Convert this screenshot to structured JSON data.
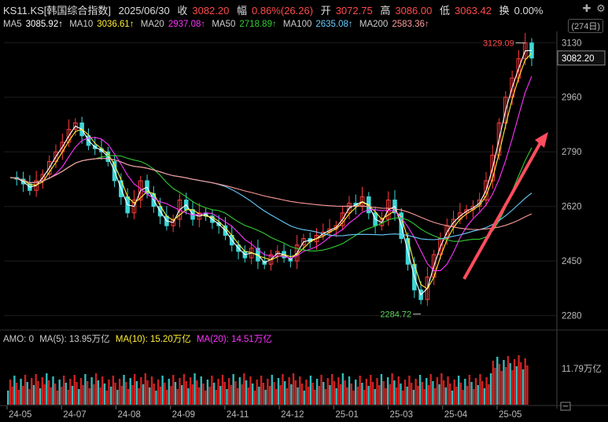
{
  "header": {
    "symbol": "KS11.KS[韩国综合指数]",
    "date": "2025/06/30",
    "close_label": "收",
    "close": "3082.20",
    "change_label": "幅",
    "change": "0.86%(26.26)",
    "open_label": "开",
    "open": "3072.75",
    "high_label": "高",
    "high": "3086.00",
    "low_label": "低",
    "low": "3063.42",
    "turnover_label": "换",
    "turnover": "0.00%"
  },
  "ma_line": [
    {
      "label": "MA5",
      "value": "3085.92↑",
      "color": "#ffffff"
    },
    {
      "label": "MA10",
      "value": "3036.61↑",
      "color": "#ffee33"
    },
    {
      "label": "MA20",
      "value": "2937.08↑",
      "color": "#ff33ff"
    },
    {
      "label": "MA50",
      "value": "2718.89↑",
      "color": "#33cc33"
    },
    {
      "label": "MA100",
      "value": "2635.08↑",
      "color": "#66ccff"
    },
    {
      "label": "MA200",
      "value": "2583.36↑",
      "color": "#ff9999"
    }
  ],
  "range_label": "(274日)",
  "chart_data": {
    "type": "candlestick",
    "y_ticks": [
      "3130",
      "2960",
      "2790",
      "2620",
      "2450",
      "2280"
    ],
    "ylim": [
      2240,
      3160
    ],
    "x_ticks": [
      "24-05",
      "24-07",
      "24-08",
      "24-09",
      "24-11",
      "24-12",
      "25-01",
      "25-03",
      "25-04",
      "25-05"
    ],
    "last_price_label": "3082.20",
    "last_price": 3082.2,
    "high_annotation": "3129.09",
    "high_value": 3129.09,
    "low_annotation": "2284.72",
    "low_value": 2284.72,
    "close_path": [
      2710,
      2705,
      2690,
      2670,
      2700,
      2720,
      2760,
      2790,
      2820,
      2860,
      2880,
      2840,
      2810,
      2800,
      2790,
      2760,
      2700,
      2650,
      2600,
      2640,
      2700,
      2660,
      2620,
      2590,
      2560,
      2580,
      2640,
      2610,
      2580,
      2600,
      2590,
      2570,
      2560,
      2530,
      2500,
      2480,
      2460,
      2490,
      2450,
      2440,
      2470,
      2480,
      2460,
      2450,
      2500,
      2520,
      2510,
      2530,
      2540,
      2550,
      2560,
      2600,
      2630,
      2620,
      2650,
      2600,
      2560,
      2580,
      2640,
      2600,
      2520,
      2440,
      2360,
      2330,
      2400,
      2470,
      2520,
      2560,
      2580,
      2600,
      2610,
      2620,
      2640,
      2700,
      2780,
      2880,
      2960,
      3020,
      3080,
      3129,
      3082
    ],
    "ma_series": [
      {
        "name": "MA5",
        "color": "#ffffff"
      },
      {
        "name": "MA10",
        "color": "#ffee33"
      },
      {
        "name": "MA20",
        "color": "#ff33ff"
      },
      {
        "name": "MA50",
        "color": "#33cc33"
      },
      {
        "name": "MA100",
        "color": "#66ccff"
      },
      {
        "name": "MA200",
        "color": "#ff9999"
      }
    ],
    "volume": {
      "amo_label": "AMO: 0",
      "ma5_label": "MA(5): 13.95万亿",
      "ma10_label": "MA(10): 15.20万亿",
      "ma20_label": "MA(20): 14.51万亿",
      "tick": "11.79万亿"
    }
  },
  "icons": {
    "plus": "plus-icon",
    "settings": "gear-icon",
    "minus": "minus-icon"
  }
}
